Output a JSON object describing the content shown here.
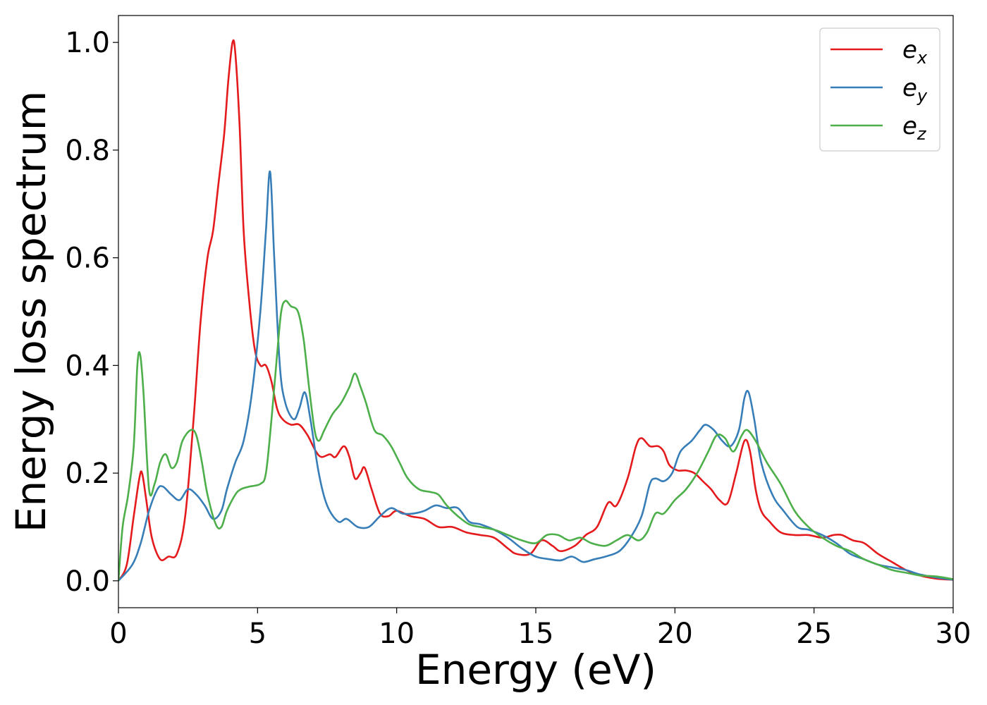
{
  "chart_data": {
    "type": "line",
    "title": "",
    "xlabel": "Energy (eV)",
    "ylabel": "Energy loss spectrum",
    "xlim": [
      0,
      30
    ],
    "ylim": [
      -0.05,
      1.05
    ],
    "xticks": [
      0,
      5,
      10,
      15,
      20,
      25,
      30
    ],
    "xtick_labels": [
      "0",
      "5",
      "10",
      "15",
      "20",
      "25",
      "30"
    ],
    "yticks": [
      0.0,
      0.2,
      0.4,
      0.6,
      0.8,
      1.0
    ],
    "ytick_labels": [
      "0.0",
      "0.2",
      "0.4",
      "0.6",
      "0.8",
      "1.0"
    ],
    "grid": false,
    "legend_position": "top-right",
    "series": [
      {
        "name": "e_x",
        "label_main": "e",
        "label_sub": "x",
        "color": "#e41a1c",
        "points": [
          [
            0,
            0
          ],
          [
            0.3,
            0.03
          ],
          [
            0.55,
            0.12
          ],
          [
            0.75,
            0.19
          ],
          [
            0.85,
            0.2
          ],
          [
            1.0,
            0.15
          ],
          [
            1.2,
            0.08
          ],
          [
            1.5,
            0.04
          ],
          [
            1.8,
            0.045
          ],
          [
            2.1,
            0.05
          ],
          [
            2.4,
            0.12
          ],
          [
            2.7,
            0.3
          ],
          [
            2.95,
            0.48
          ],
          [
            3.2,
            0.6
          ],
          [
            3.4,
            0.65
          ],
          [
            3.6,
            0.74
          ],
          [
            3.8,
            0.83
          ],
          [
            3.95,
            0.93
          ],
          [
            4.1,
            1.0
          ],
          [
            4.2,
            0.98
          ],
          [
            4.35,
            0.85
          ],
          [
            4.5,
            0.65
          ],
          [
            4.7,
            0.52
          ],
          [
            4.9,
            0.43
          ],
          [
            5.1,
            0.4
          ],
          [
            5.3,
            0.4
          ],
          [
            5.5,
            0.37
          ],
          [
            5.7,
            0.32
          ],
          [
            5.9,
            0.3
          ],
          [
            6.2,
            0.29
          ],
          [
            6.5,
            0.29
          ],
          [
            6.8,
            0.27
          ],
          [
            7.1,
            0.24
          ],
          [
            7.3,
            0.23
          ],
          [
            7.6,
            0.235
          ],
          [
            7.8,
            0.23
          ],
          [
            8.1,
            0.25
          ],
          [
            8.3,
            0.23
          ],
          [
            8.5,
            0.19
          ],
          [
            8.7,
            0.2
          ],
          [
            8.85,
            0.21
          ],
          [
            9.1,
            0.17
          ],
          [
            9.4,
            0.125
          ],
          [
            9.7,
            0.12
          ],
          [
            10.0,
            0.13
          ],
          [
            10.5,
            0.12
          ],
          [
            11.0,
            0.115
          ],
          [
            11.5,
            0.1
          ],
          [
            12.0,
            0.1
          ],
          [
            12.5,
            0.09
          ],
          [
            13.0,
            0.085
          ],
          [
            13.5,
            0.08
          ],
          [
            14.0,
            0.06
          ],
          [
            14.3,
            0.05
          ],
          [
            14.8,
            0.05
          ],
          [
            15.2,
            0.075
          ],
          [
            15.6,
            0.065
          ],
          [
            15.9,
            0.055
          ],
          [
            16.4,
            0.065
          ],
          [
            16.8,
            0.085
          ],
          [
            17.2,
            0.1
          ],
          [
            17.6,
            0.145
          ],
          [
            17.9,
            0.14
          ],
          [
            18.3,
            0.19
          ],
          [
            18.6,
            0.25
          ],
          [
            18.8,
            0.265
          ],
          [
            19.1,
            0.25
          ],
          [
            19.4,
            0.25
          ],
          [
            19.6,
            0.24
          ],
          [
            19.8,
            0.215
          ],
          [
            20.1,
            0.205
          ],
          [
            20.4,
            0.205
          ],
          [
            20.7,
            0.2
          ],
          [
            21.0,
            0.185
          ],
          [
            21.3,
            0.17
          ],
          [
            21.6,
            0.15
          ],
          [
            21.9,
            0.145
          ],
          [
            22.2,
            0.2
          ],
          [
            22.5,
            0.26
          ],
          [
            22.7,
            0.24
          ],
          [
            22.9,
            0.17
          ],
          [
            23.1,
            0.13
          ],
          [
            23.4,
            0.11
          ],
          [
            23.8,
            0.09
          ],
          [
            24.3,
            0.085
          ],
          [
            24.8,
            0.085
          ],
          [
            25.3,
            0.08
          ],
          [
            25.7,
            0.085
          ],
          [
            26.0,
            0.085
          ],
          [
            26.4,
            0.075
          ],
          [
            26.8,
            0.07
          ],
          [
            27.3,
            0.05
          ],
          [
            27.8,
            0.035
          ],
          [
            28.3,
            0.02
          ],
          [
            28.8,
            0.01
          ],
          [
            29.4,
            0.004
          ],
          [
            30,
            0.002
          ]
        ]
      },
      {
        "name": "e_y",
        "label_main": "e",
        "label_sub": "y",
        "color": "#377eb8",
        "points": [
          [
            0,
            0
          ],
          [
            0.5,
            0.03
          ],
          [
            0.8,
            0.07
          ],
          [
            1.1,
            0.13
          ],
          [
            1.4,
            0.17
          ],
          [
            1.6,
            0.175
          ],
          [
            1.9,
            0.16
          ],
          [
            2.2,
            0.15
          ],
          [
            2.5,
            0.17
          ],
          [
            2.8,
            0.16
          ],
          [
            3.1,
            0.14
          ],
          [
            3.4,
            0.115
          ],
          [
            3.7,
            0.13
          ],
          [
            3.9,
            0.17
          ],
          [
            4.2,
            0.22
          ],
          [
            4.5,
            0.26
          ],
          [
            4.8,
            0.35
          ],
          [
            5.1,
            0.5
          ],
          [
            5.3,
            0.65
          ],
          [
            5.45,
            0.76
          ],
          [
            5.6,
            0.6
          ],
          [
            5.8,
            0.4
          ],
          [
            6.0,
            0.33
          ],
          [
            6.3,
            0.3
          ],
          [
            6.5,
            0.32
          ],
          [
            6.7,
            0.35
          ],
          [
            6.9,
            0.3
          ],
          [
            7.2,
            0.2
          ],
          [
            7.5,
            0.14
          ],
          [
            7.9,
            0.11
          ],
          [
            8.2,
            0.115
          ],
          [
            8.6,
            0.1
          ],
          [
            9.0,
            0.1
          ],
          [
            9.4,
            0.12
          ],
          [
            9.8,
            0.135
          ],
          [
            10.2,
            0.125
          ],
          [
            10.6,
            0.125
          ],
          [
            11.0,
            0.13
          ],
          [
            11.4,
            0.14
          ],
          [
            11.8,
            0.135
          ],
          [
            12.2,
            0.135
          ],
          [
            12.6,
            0.11
          ],
          [
            13.0,
            0.105
          ],
          [
            13.5,
            0.095
          ],
          [
            14.0,
            0.08
          ],
          [
            14.5,
            0.06
          ],
          [
            15.0,
            0.045
          ],
          [
            15.5,
            0.04
          ],
          [
            15.9,
            0.038
          ],
          [
            16.3,
            0.045
          ],
          [
            16.7,
            0.035
          ],
          [
            17.1,
            0.04
          ],
          [
            17.5,
            0.045
          ],
          [
            18.0,
            0.055
          ],
          [
            18.4,
            0.08
          ],
          [
            18.8,
            0.12
          ],
          [
            19.1,
            0.18
          ],
          [
            19.3,
            0.19
          ],
          [
            19.6,
            0.185
          ],
          [
            19.9,
            0.2
          ],
          [
            20.2,
            0.24
          ],
          [
            20.6,
            0.26
          ],
          [
            20.9,
            0.28
          ],
          [
            21.1,
            0.29
          ],
          [
            21.4,
            0.28
          ],
          [
            21.7,
            0.26
          ],
          [
            22.0,
            0.25
          ],
          [
            22.3,
            0.28
          ],
          [
            22.5,
            0.34
          ],
          [
            22.65,
            0.35
          ],
          [
            22.85,
            0.3
          ],
          [
            23.1,
            0.22
          ],
          [
            23.5,
            0.16
          ],
          [
            23.9,
            0.13
          ],
          [
            24.4,
            0.1
          ],
          [
            24.8,
            0.095
          ],
          [
            25.3,
            0.085
          ],
          [
            25.8,
            0.07
          ],
          [
            26.3,
            0.05
          ],
          [
            26.8,
            0.04
          ],
          [
            27.3,
            0.03
          ],
          [
            27.8,
            0.025
          ],
          [
            28.3,
            0.02
          ],
          [
            28.8,
            0.012
          ],
          [
            29.4,
            0.006
          ],
          [
            30,
            0.002
          ]
        ]
      },
      {
        "name": "e_z",
        "label_main": "e",
        "label_sub": "z",
        "color": "#4daf4a",
        "points": [
          [
            0,
            0
          ],
          [
            0.15,
            0.1
          ],
          [
            0.35,
            0.16
          ],
          [
            0.55,
            0.25
          ],
          [
            0.68,
            0.4
          ],
          [
            0.78,
            0.42
          ],
          [
            0.9,
            0.35
          ],
          [
            1.1,
            0.17
          ],
          [
            1.3,
            0.18
          ],
          [
            1.5,
            0.22
          ],
          [
            1.7,
            0.235
          ],
          [
            1.9,
            0.21
          ],
          [
            2.1,
            0.22
          ],
          [
            2.3,
            0.26
          ],
          [
            2.6,
            0.28
          ],
          [
            2.8,
            0.27
          ],
          [
            3.0,
            0.22
          ],
          [
            3.2,
            0.16
          ],
          [
            3.5,
            0.105
          ],
          [
            3.7,
            0.1
          ],
          [
            3.9,
            0.13
          ],
          [
            4.2,
            0.16
          ],
          [
            4.4,
            0.17
          ],
          [
            4.7,
            0.175
          ],
          [
            5.1,
            0.18
          ],
          [
            5.3,
            0.2
          ],
          [
            5.5,
            0.3
          ],
          [
            5.7,
            0.42
          ],
          [
            5.85,
            0.5
          ],
          [
            6.0,
            0.52
          ],
          [
            6.2,
            0.51
          ],
          [
            6.45,
            0.5
          ],
          [
            6.65,
            0.45
          ],
          [
            6.85,
            0.36
          ],
          [
            7.05,
            0.28
          ],
          [
            7.2,
            0.26
          ],
          [
            7.4,
            0.28
          ],
          [
            7.7,
            0.31
          ],
          [
            8.0,
            0.33
          ],
          [
            8.3,
            0.36
          ],
          [
            8.5,
            0.385
          ],
          [
            8.7,
            0.36
          ],
          [
            8.9,
            0.33
          ],
          [
            9.2,
            0.28
          ],
          [
            9.5,
            0.27
          ],
          [
            9.8,
            0.25
          ],
          [
            10.1,
            0.22
          ],
          [
            10.4,
            0.19
          ],
          [
            10.8,
            0.17
          ],
          [
            11.2,
            0.165
          ],
          [
            11.5,
            0.16
          ],
          [
            11.8,
            0.14
          ],
          [
            12.2,
            0.12
          ],
          [
            12.6,
            0.105
          ],
          [
            13.0,
            0.1
          ],
          [
            13.5,
            0.095
          ],
          [
            14.0,
            0.085
          ],
          [
            14.5,
            0.075
          ],
          [
            15.0,
            0.07
          ],
          [
            15.4,
            0.085
          ],
          [
            15.8,
            0.085
          ],
          [
            16.2,
            0.075
          ],
          [
            16.6,
            0.08
          ],
          [
            17.0,
            0.07
          ],
          [
            17.5,
            0.065
          ],
          [
            17.9,
            0.075
          ],
          [
            18.3,
            0.085
          ],
          [
            18.7,
            0.075
          ],
          [
            19.0,
            0.09
          ],
          [
            19.3,
            0.125
          ],
          [
            19.6,
            0.125
          ],
          [
            20.0,
            0.15
          ],
          [
            20.4,
            0.17
          ],
          [
            20.8,
            0.2
          ],
          [
            21.2,
            0.24
          ],
          [
            21.5,
            0.27
          ],
          [
            21.8,
            0.265
          ],
          [
            22.1,
            0.24
          ],
          [
            22.4,
            0.27
          ],
          [
            22.6,
            0.28
          ],
          [
            22.9,
            0.26
          ],
          [
            23.3,
            0.22
          ],
          [
            23.8,
            0.18
          ],
          [
            24.3,
            0.13
          ],
          [
            24.8,
            0.1
          ],
          [
            25.3,
            0.08
          ],
          [
            25.8,
            0.065
          ],
          [
            26.3,
            0.055
          ],
          [
            26.8,
            0.04
          ],
          [
            27.3,
            0.03
          ],
          [
            27.8,
            0.02
          ],
          [
            28.3,
            0.015
          ],
          [
            28.8,
            0.01
          ],
          [
            29.4,
            0.008
          ],
          [
            30,
            0.003
          ]
        ]
      }
    ]
  }
}
